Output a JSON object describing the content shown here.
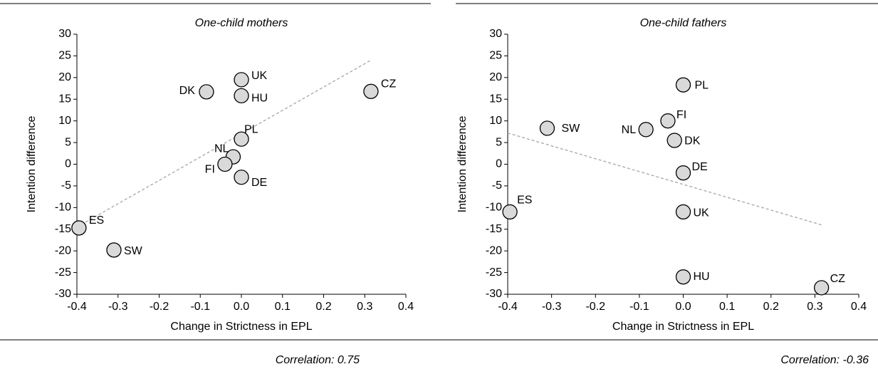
{
  "chart_data": [
    {
      "type": "scatter",
      "title": "One-child mothers",
      "x_label": "Change in Strictness in EPL",
      "y_label": "Intention difference",
      "x": [
        0,
        0,
        -0.085,
        0.315,
        0,
        -0.02,
        -0.04,
        0,
        -0.395,
        -0.31
      ],
      "values": [
        19.5,
        15.8,
        16.7,
        16.8,
        5.8,
        1.7,
        0,
        -3,
        -14.7,
        -19.8
      ],
      "point_labels": [
        "UK",
        "HU",
        "DK",
        "CZ",
        "PL",
        "NL",
        "FI",
        "DE",
        "ES",
        "SW"
      ],
      "color": "#d9d9d9",
      "trendline": {
        "x": [
          -0.4,
          0.315
        ],
        "y": [
          -14.5,
          24
        ],
        "color": "#a6a6a6"
      },
      "xlim": [
        -0.4,
        0.4
      ],
      "ylim": [
        -30,
        30
      ],
      "xticks": [
        -0.4,
        -0.3,
        -0.2,
        -0.1,
        {
          "value": 0,
          "label": "0.0"
        },
        0.1,
        0.2,
        0.3,
        0.4
      ],
      "yticks": [
        -30,
        -25,
        -20,
        -15,
        -10,
        -5,
        0,
        5,
        10,
        15,
        20,
        25,
        30
      ],
      "annotation": "Correlation: 0.75"
    },
    {
      "type": "scatter",
      "title": "One-child fathers",
      "x_label": "Change in Strictness in EPL",
      "y_label": "Intention difference",
      "x": [
        0,
        -0.035,
        -0.31,
        -0.085,
        -0.02,
        0,
        -0.395,
        0,
        0,
        0.315
      ],
      "values": [
        18.3,
        10,
        8.3,
        8,
        5.5,
        -2,
        -11,
        -11,
        -26,
        -28.5
      ],
      "point_labels": [
        "PL",
        "FI",
        "SW",
        "NL",
        "DK",
        "DE",
        "ES",
        "UK",
        "HU",
        "CZ"
      ],
      "color": "#d9d9d9",
      "trendline": {
        "x": [
          -0.4,
          0.315
        ],
        "y": [
          7.2,
          -14
        ],
        "color": "#a6a6a6"
      },
      "xlim": [
        -0.4,
        0.4
      ],
      "ylim": [
        -30,
        30
      ],
      "xticks": [
        -0.4,
        -0.3,
        -0.2,
        -0.1,
        {
          "value": 0,
          "label": "0.0"
        },
        0.1,
        0.2,
        0.3,
        0.4
      ],
      "yticks": [
        -30,
        -25,
        -20,
        -15,
        -10,
        -5,
        0,
        5,
        10,
        15,
        20,
        25,
        30
      ],
      "annotation": "Correlation: -0.36"
    }
  ]
}
